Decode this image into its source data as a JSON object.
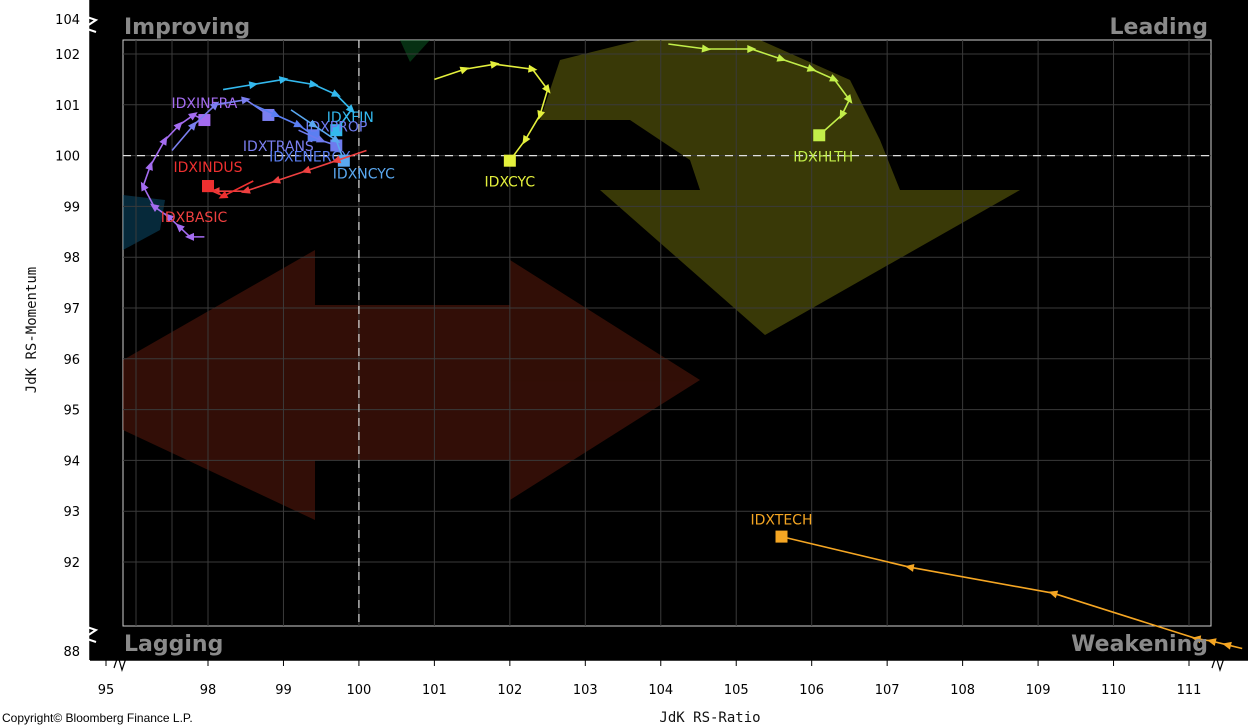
{
  "chart_data": {
    "type": "scatter",
    "title": "",
    "xlabel": "JdK RS-Ratio",
    "ylabel": "JdK RS-Momentum",
    "xlim": [
      95,
      111.5
    ],
    "ylim": [
      88,
      104
    ],
    "x_ticks": [
      "95",
      "98",
      "99",
      "100",
      "101",
      "102",
      "103",
      "104",
      "105",
      "106",
      "107",
      "108",
      "109",
      "110",
      "111"
    ],
    "y_ticks": [
      "104",
      "102",
      "101",
      "100",
      "99",
      "98",
      "97",
      "96",
      "95",
      "94",
      "93",
      "92",
      "88"
    ],
    "center": [
      100,
      100
    ],
    "quadrants": {
      "top_left": "Improving",
      "top_right": "Leading",
      "bottom_left": "Lagging",
      "bottom_right": "Weakening"
    },
    "grid": true,
    "series": [
      {
        "name": "IDXINFRA",
        "color": "#a46cf0",
        "points": [
          [
            97.9,
            98.4
          ],
          [
            97.5,
            98.4
          ],
          [
            97.2,
            98.6
          ],
          [
            96.9,
            98.8
          ],
          [
            96.5,
            99.0
          ],
          [
            96.2,
            99.4
          ],
          [
            96.4,
            99.8
          ],
          [
            96.8,
            100.3
          ],
          [
            97.2,
            100.6
          ],
          [
            97.6,
            100.8
          ],
          [
            97.9,
            100.7
          ]
        ]
      },
      {
        "name": "IDXTRANS",
        "color": "#7b7ff0",
        "points": [
          [
            97.0,
            100.1
          ],
          [
            97.6,
            100.6
          ],
          [
            98.1,
            101.0
          ],
          [
            98.5,
            101.1
          ],
          [
            98.8,
            100.8
          ]
        ]
      },
      {
        "name": "IDXFIN",
        "color": "#33b9ee",
        "points": [
          [
            98.2,
            101.3
          ],
          [
            98.6,
            101.4
          ],
          [
            99.0,
            101.5
          ],
          [
            99.4,
            101.4
          ],
          [
            99.7,
            101.2
          ],
          [
            99.9,
            100.9
          ],
          [
            99.7,
            100.5
          ]
        ]
      },
      {
        "name": "IDXENERGY",
        "color": "#5b7ff2",
        "points": [
          [
            98.6,
            101.0
          ],
          [
            98.9,
            100.8
          ],
          [
            99.2,
            100.6
          ],
          [
            99.4,
            100.4
          ]
        ]
      },
      {
        "name": "IDXPROP",
        "color": "#6e7bee",
        "points": [
          [
            99.2,
            100.5
          ],
          [
            99.5,
            100.3
          ],
          [
            99.7,
            100.2
          ]
        ]
      },
      {
        "name": "IDXNCYC",
        "color": "#5aa8f0",
        "points": [
          [
            99.1,
            100.9
          ],
          [
            99.4,
            100.6
          ],
          [
            99.7,
            100.3
          ],
          [
            99.8,
            99.9
          ]
        ]
      },
      {
        "name": "IDXBASIC",
        "color": "#ee4040",
        "points": [
          [
            100.1,
            100.1
          ],
          [
            99.7,
            99.9
          ],
          [
            99.3,
            99.7
          ],
          [
            98.9,
            99.5
          ],
          [
            98.5,
            99.3
          ],
          [
            98.1,
            99.3
          ],
          [
            98.0,
            99.4
          ]
        ]
      },
      {
        "name": "IDXINDUS",
        "color": "#ee3030",
        "points": [
          [
            98.6,
            99.5
          ],
          [
            98.2,
            99.2
          ],
          [
            98.0,
            99.4
          ]
        ]
      },
      {
        "name": "IDXCYC",
        "color": "#e4f03c",
        "points": [
          [
            101.0,
            101.5
          ],
          [
            101.4,
            101.7
          ],
          [
            101.8,
            101.8
          ],
          [
            102.3,
            101.7
          ],
          [
            102.5,
            101.3
          ],
          [
            102.4,
            100.8
          ],
          [
            102.2,
            100.3
          ],
          [
            102.0,
            99.9
          ]
        ]
      },
      {
        "name": "IDXHLTH",
        "color": "#c2ee4a",
        "points": [
          [
            104.1,
            102.2
          ],
          [
            104.6,
            102.1
          ],
          [
            105.2,
            102.1
          ],
          [
            105.6,
            101.9
          ],
          [
            106.0,
            101.7
          ],
          [
            106.3,
            101.5
          ],
          [
            106.5,
            101.1
          ],
          [
            106.4,
            100.8
          ],
          [
            106.1,
            100.4
          ]
        ]
      },
      {
        "name": "IDXTECH",
        "color": "#f5a623",
        "points": [
          [
            111.7,
            88.2
          ],
          [
            111.5,
            88.5
          ],
          [
            111.3,
            88.8
          ],
          [
            111.1,
            89.0
          ],
          [
            109.2,
            91.4
          ],
          [
            107.3,
            91.9
          ],
          [
            105.6,
            92.5
          ]
        ]
      }
    ]
  }
}
